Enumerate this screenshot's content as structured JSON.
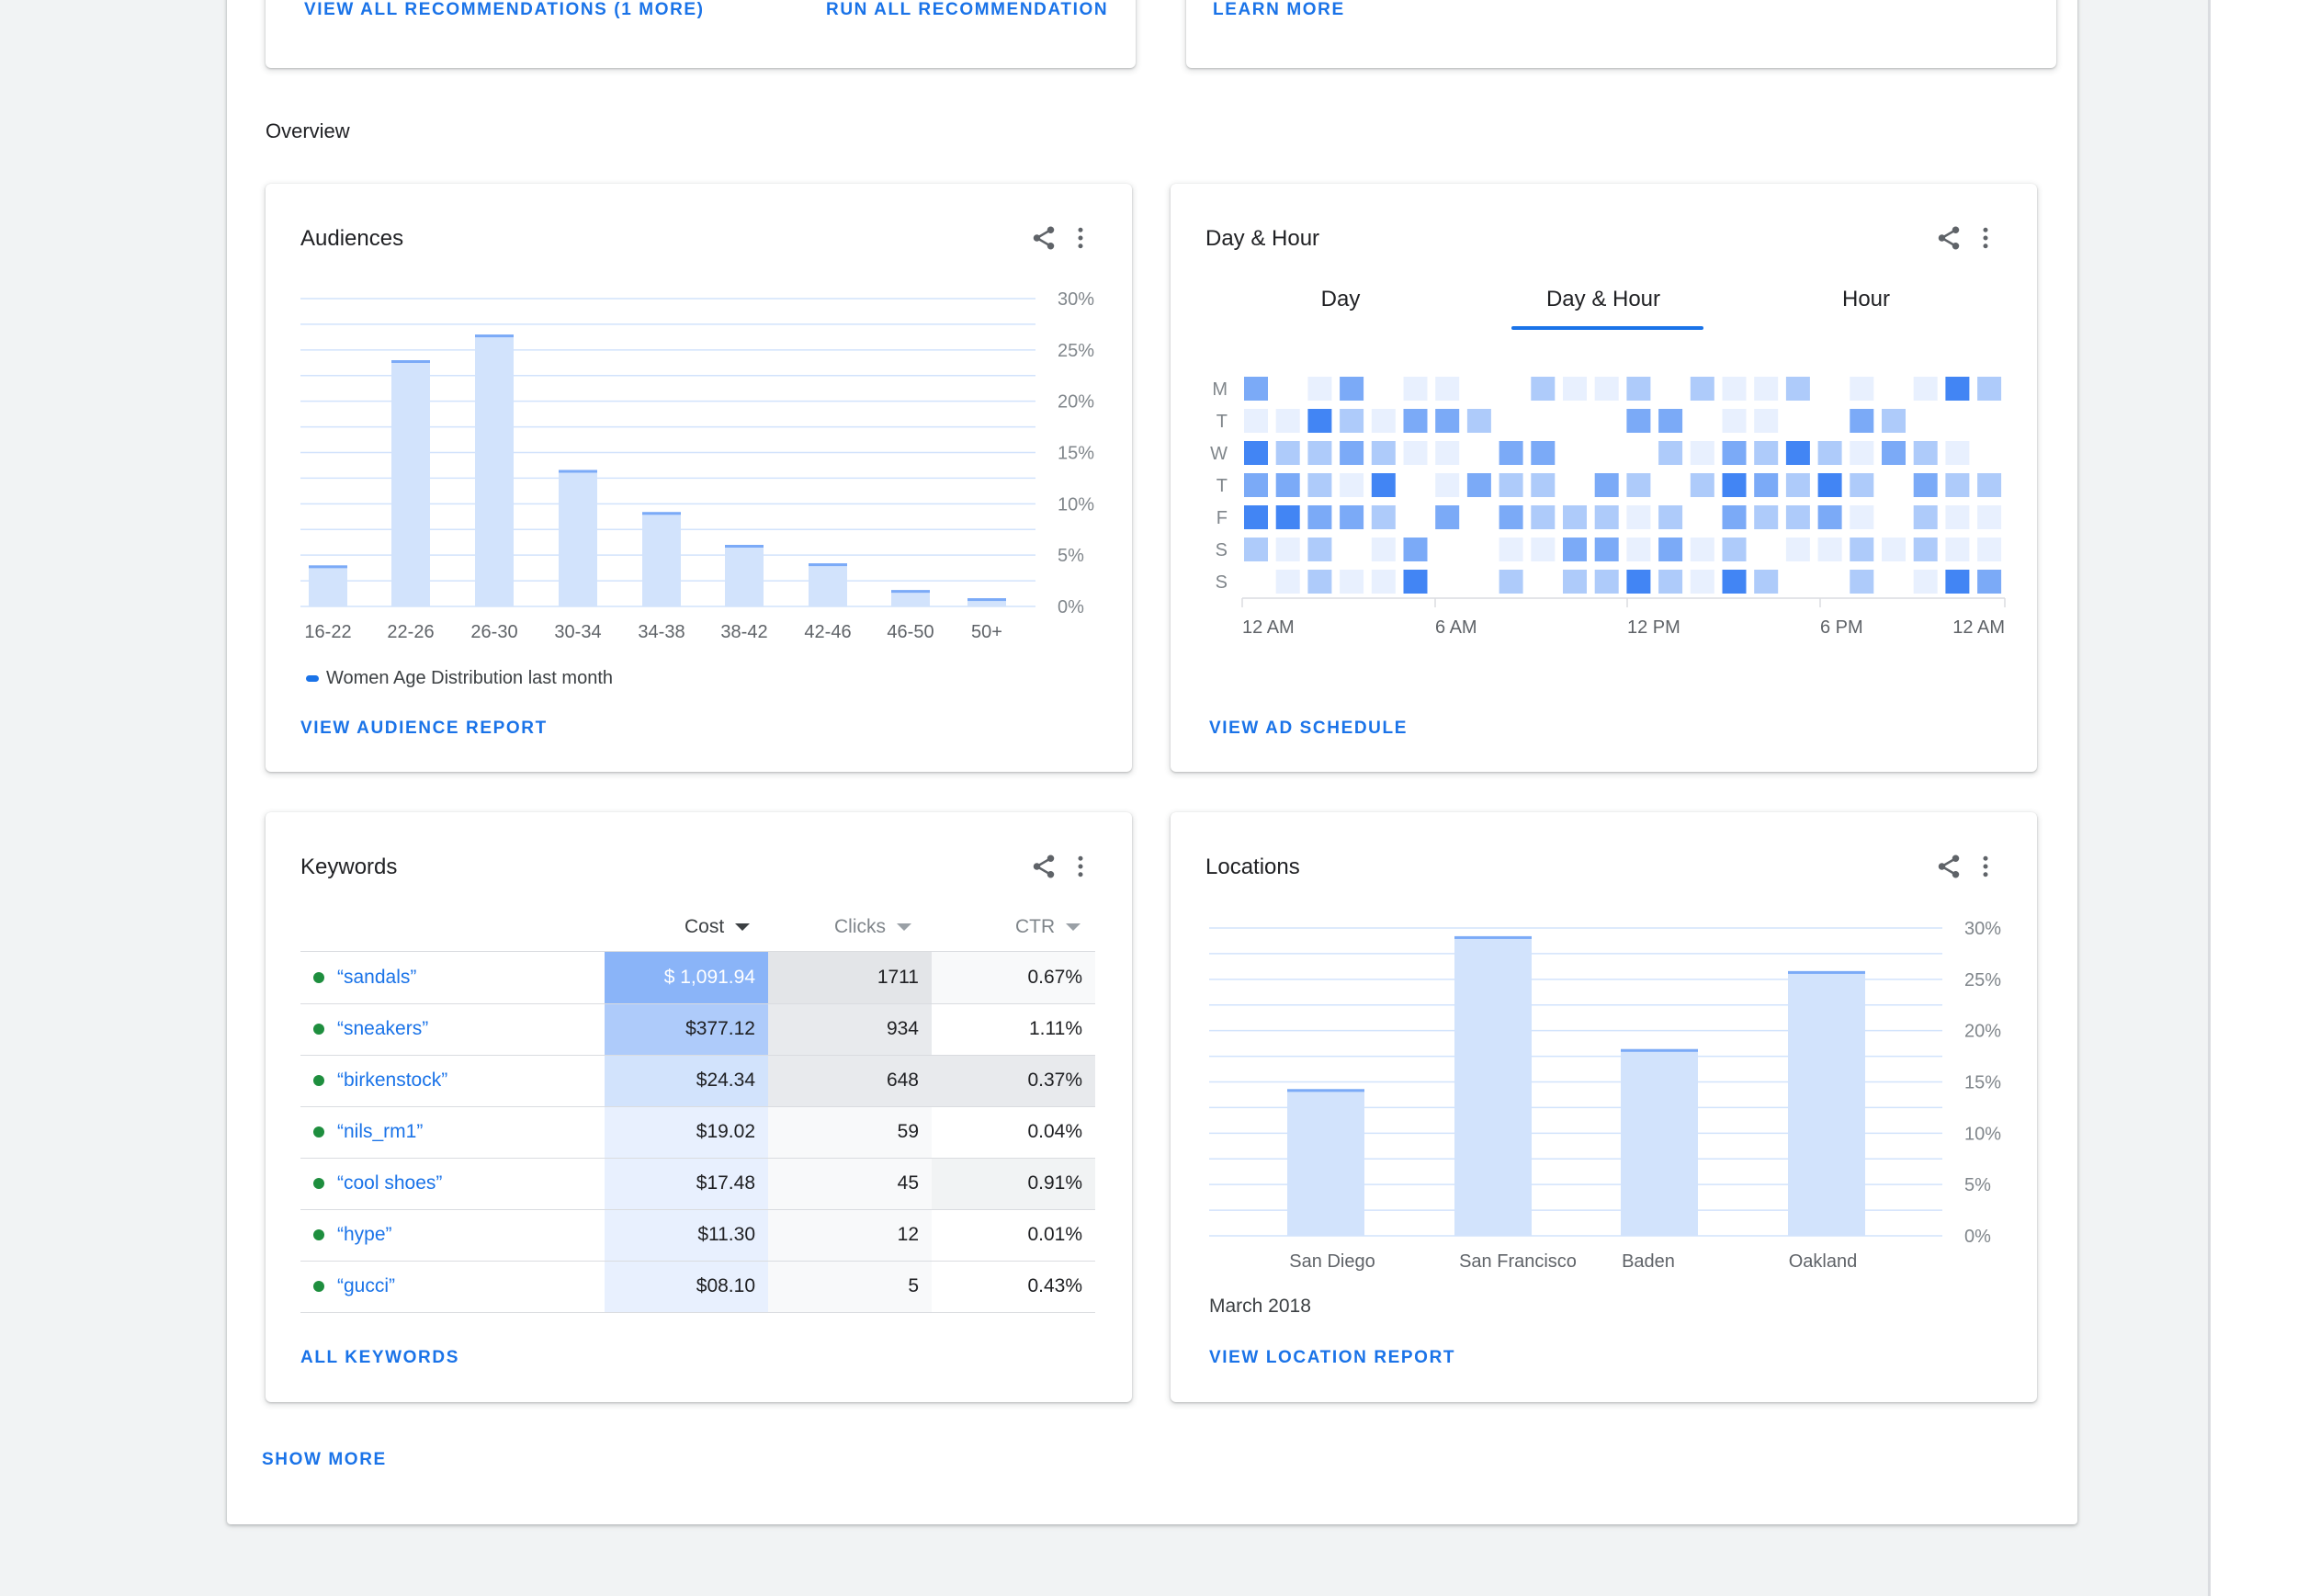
{
  "top_cards": {
    "recommendations": {
      "view_all_label": "VIEW ALL RECOMMENDATIONS (1 MORE)",
      "run_all_label": "RUN ALL RECOMMENDATION"
    },
    "insights": {
      "learn_more_label": "LEARN MORE"
    }
  },
  "overview": {
    "heading": "Overview"
  },
  "audiences": {
    "title": "Audiences",
    "link_label": "VIEW AUDIENCE REPORT",
    "legend_label": "Women Age Distribution last month",
    "chart_data": {
      "type": "bar",
      "categories": [
        "16-22",
        "22-26",
        "26-30",
        "30-34",
        "34-38",
        "38-42",
        "42-46",
        "46-50",
        "50+"
      ],
      "values": [
        4,
        24,
        26.5,
        13.3,
        9.2,
        6,
        4.2,
        1.6,
        0.8
      ],
      "series": [
        {
          "name": "Women Age Distribution last month",
          "values": [
            4,
            24,
            26.5,
            13.3,
            9.2,
            6,
            4.2,
            1.6,
            0.8
          ]
        }
      ],
      "y_ticks": [
        "30%",
        "25%",
        "20%",
        "15%",
        "10%",
        "5%",
        "0%"
      ],
      "ylim": [
        0,
        30
      ],
      "grid": true,
      "legend_position": "bottom-left"
    }
  },
  "day_hour": {
    "title": "Day & Hour",
    "tabs": [
      {
        "label": "Day",
        "active": false
      },
      {
        "label": "Day & Hour",
        "active": true
      },
      {
        "label": "Hour",
        "active": false
      }
    ],
    "link_label": "VIEW AD SCHEDULE",
    "chart_data": {
      "type": "heatmap",
      "rows": [
        "M",
        "T",
        "W",
        "T",
        "F",
        "S",
        "S"
      ],
      "x_ticks": [
        "12 AM",
        "6 AM",
        "12 PM",
        "6 PM",
        "12 AM"
      ],
      "columns": 24,
      "intensity_levels": [
        0,
        1,
        2,
        3,
        4
      ],
      "values": [
        [
          3,
          0,
          1,
          3,
          0,
          1,
          1,
          0,
          0,
          2,
          1,
          1,
          2,
          0,
          2,
          1,
          1,
          2,
          0,
          1,
          0,
          1,
          4,
          2
        ],
        [
          1,
          1,
          4,
          2,
          1,
          3,
          3,
          2,
          0,
          0,
          0,
          0,
          3,
          3,
          0,
          1,
          1,
          0,
          0,
          3,
          2,
          0,
          0,
          0
        ],
        [
          4,
          2,
          2,
          3,
          2,
          1,
          1,
          0,
          3,
          3,
          0,
          0,
          0,
          2,
          1,
          3,
          2,
          4,
          2,
          1,
          3,
          2,
          1,
          0
        ],
        [
          3,
          3,
          2,
          1,
          4,
          0,
          1,
          3,
          2,
          2,
          0,
          3,
          2,
          0,
          2,
          4,
          3,
          2,
          4,
          2,
          0,
          3,
          2,
          2
        ],
        [
          4,
          4,
          3,
          3,
          2,
          0,
          3,
          0,
          3,
          2,
          2,
          2,
          1,
          2,
          0,
          3,
          2,
          2,
          3,
          1,
          0,
          2,
          1,
          1
        ],
        [
          2,
          1,
          2,
          0,
          1,
          3,
          0,
          0,
          1,
          1,
          3,
          3,
          1,
          3,
          1,
          2,
          0,
          1,
          1,
          2,
          1,
          2,
          1,
          1
        ],
        [
          0,
          1,
          2,
          1,
          1,
          4,
          0,
          0,
          2,
          0,
          2,
          2,
          4,
          2,
          1,
          4,
          2,
          0,
          0,
          2,
          0,
          1,
          4,
          3
        ]
      ],
      "colors": [
        "#ffffff",
        "#e8f0fe",
        "#aecbfa",
        "#7baaf7",
        "#4285f4"
      ]
    }
  },
  "keywords": {
    "title": "Keywords",
    "link_label": "ALL KEYWORDS",
    "columns": [
      {
        "label": "Cost",
        "sorted": true
      },
      {
        "label": "Clicks",
        "sorted": false
      },
      {
        "label": "CTR",
        "sorted": false
      }
    ],
    "rows": [
      {
        "keyword": "“sandals”",
        "cost": "$ 1,091.94",
        "clicks": "1711",
        "ctr": "0.67%"
      },
      {
        "keyword": "“sneakers”",
        "cost": "$377.12",
        "clicks": "934",
        "ctr": "1.11%"
      },
      {
        "keyword": "“birkenstock”",
        "cost": "$24.34",
        "clicks": "648",
        "ctr": "0.37%"
      },
      {
        "keyword": "“nils_rm1”",
        "cost": "$19.02",
        "clicks": "59",
        "ctr": "0.04%"
      },
      {
        "keyword": "“cool shoes”",
        "cost": "$17.48",
        "clicks": "45",
        "ctr": "0.91%"
      },
      {
        "keyword": "“hype”",
        "cost": "$11.30",
        "clicks": "12",
        "ctr": "0.01%"
      },
      {
        "keyword": "“gucci”",
        "cost": "$08.10",
        "clicks": "5",
        "ctr": "0.43%"
      }
    ],
    "cell_colors": {
      "cost": [
        "#8ab4f8",
        "#aecbfa",
        "#d2e3fc",
        "#e8f0fe",
        "#e8f0fe",
        "#e8f0fe",
        "#e8f0fe"
      ],
      "clicks": [
        "#e3e5e8",
        "#e8eaed",
        "#e8eaed",
        "#f8f9fa",
        "#f8f9fa",
        "#f8f9fa",
        "#f8f9fa"
      ],
      "ctr": [
        "#f8f9fa",
        "#ffffff",
        "#e8eaed",
        "#ffffff",
        "#f1f3f4",
        "#ffffff",
        "#ffffff"
      ]
    }
  },
  "locations": {
    "title": "Locations",
    "caption": "March 2018",
    "link_label": "VIEW LOCATION REPORT",
    "chart_data": {
      "type": "bar",
      "categories": [
        "San Diego",
        "San Francisco",
        "Baden",
        "Oakland"
      ],
      "values": [
        14.3,
        29.2,
        18.2,
        25.8
      ],
      "y_ticks": [
        "30%",
        "25%",
        "20%",
        "15%",
        "10%",
        "5%",
        "0%"
      ],
      "ylim": [
        0,
        30
      ],
      "grid": true
    }
  },
  "footer": {
    "show_more_label": "SHOW MORE"
  },
  "theme": {
    "accent": "#1a73e8",
    "bar_fill": "#d2e3fc",
    "bar_top": "#7baaf7",
    "gridline": "#d2e3fc",
    "keyword_dot": "#1e8e3e"
  }
}
